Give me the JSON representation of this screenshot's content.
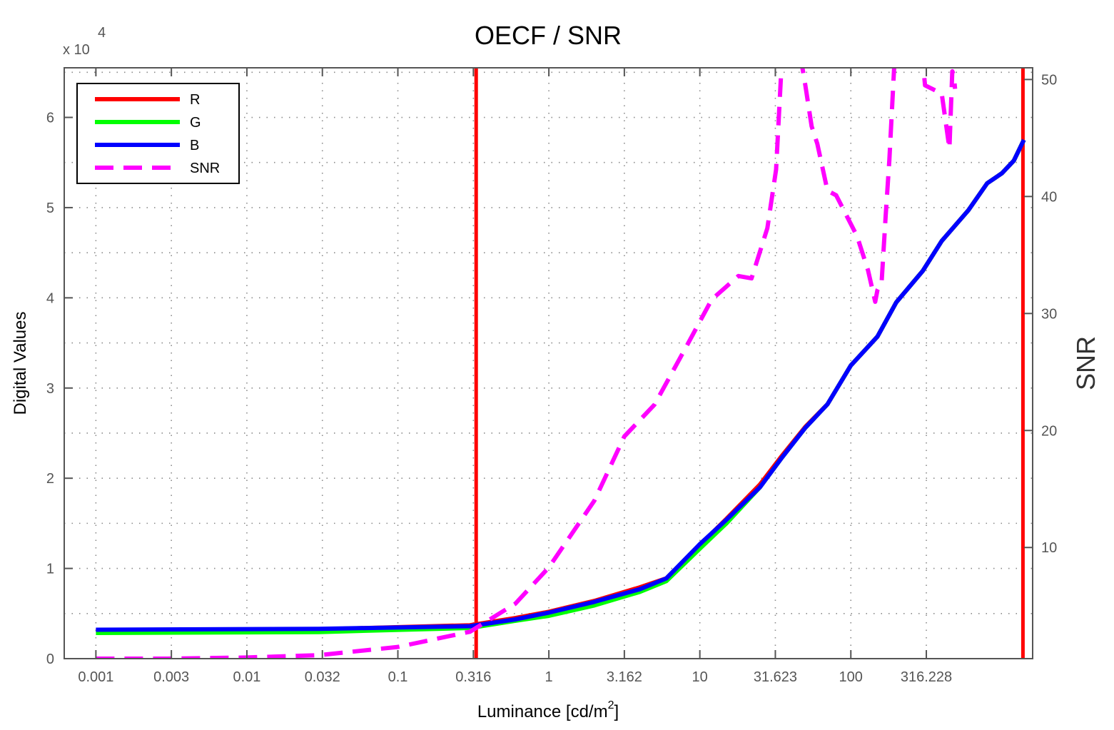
{
  "chart_data": {
    "type": "line",
    "title": "OECF / SNR",
    "xlabel": "Luminance [cd/m",
    "xlabel_sup": "2",
    "xlabel_end": "]",
    "ylabel": "Digital Values",
    "y2label": "SNR",
    "y_exponent_base": "x 10",
    "y_exponent_power": "4",
    "xscale": "log10",
    "xlim": [
      0.000617,
      1600
    ],
    "ylim": [
      0,
      65500
    ],
    "y2lim": [
      0.5,
      51
    ],
    "xticks": [
      {
        "value": 0.001,
        "label": "0.001"
      },
      {
        "value": 0.003162,
        "label": "0.003"
      },
      {
        "value": 0.01,
        "label": "0.01"
      },
      {
        "value": 0.031623,
        "label": "0.032"
      },
      {
        "value": 0.1,
        "label": "0.1"
      },
      {
        "value": 0.316228,
        "label": "0.316"
      },
      {
        "value": 1,
        "label": "1"
      },
      {
        "value": 3.162278,
        "label": "3.162"
      },
      {
        "value": 10,
        "label": "10"
      },
      {
        "value": 31.622777,
        "label": "31.623"
      },
      {
        "value": 100,
        "label": "100"
      },
      {
        "value": 316.227766,
        "label": "316.228"
      }
    ],
    "yticks": [
      {
        "value": 0,
        "label": "0"
      },
      {
        "value": 10000,
        "label": "1"
      },
      {
        "value": 20000,
        "label": "2"
      },
      {
        "value": 30000,
        "label": "3"
      },
      {
        "value": 40000,
        "label": "4"
      },
      {
        "value": 50000,
        "label": "5"
      },
      {
        "value": 60000,
        "label": "6"
      }
    ],
    "y2ticks": [
      {
        "value": 10,
        "label": "10"
      },
      {
        "value": 20,
        "label": "20"
      },
      {
        "value": 30,
        "label": "30"
      },
      {
        "value": 40,
        "label": "40"
      },
      {
        "value": 50,
        "label": "50"
      }
    ],
    "grid": true,
    "legend_position": "top-left",
    "vlines": [
      {
        "x": 0.33,
        "color": "#ff0000"
      },
      {
        "x": 1380,
        "color": "#ff0000"
      }
    ],
    "series": [
      {
        "name": "R",
        "axis": "left",
        "color": "#ff0000",
        "dash": false,
        "x": [
          0.001,
          0.03,
          0.3,
          0.6,
          1,
          2,
          4,
          6,
          10,
          15,
          25,
          35,
          50,
          70,
          100,
          150,
          200,
          300,
          400,
          600,
          800,
          1000,
          1200,
          1400
        ],
        "y": [
          3150,
          3250,
          3700,
          4500,
          5200,
          6400,
          7900,
          8900,
          12600,
          15500,
          19300,
          22500,
          25700,
          28200,
          32500,
          35700,
          39500,
          43000,
          46300,
          49700,
          52700,
          53800,
          55200,
          57500
        ]
      },
      {
        "name": "G",
        "axis": "left",
        "color": "#00ff00",
        "dash": false,
        "x": [
          0.001,
          0.03,
          0.3,
          0.6,
          1,
          2,
          4,
          6,
          10,
          15,
          25,
          35,
          50,
          70,
          100,
          150,
          200,
          300,
          400,
          600,
          800,
          1000,
          1200,
          1400
        ],
        "y": [
          2850,
          2950,
          3400,
          4200,
          4750,
          5900,
          7400,
          8600,
          12200,
          15000,
          19000,
          22300,
          25600,
          28200,
          32500,
          35700,
          39500,
          43000,
          46300,
          49700,
          52700,
          53800,
          55200,
          57500
        ]
      },
      {
        "name": "B",
        "axis": "left",
        "color": "#0000ff",
        "dash": false,
        "x": [
          0.001,
          0.03,
          0.3,
          0.6,
          1,
          2,
          4,
          6,
          10,
          15,
          25,
          35,
          50,
          70,
          100,
          150,
          200,
          300,
          400,
          600,
          800,
          1000,
          1200,
          1400
        ],
        "y": [
          3200,
          3300,
          3600,
          4350,
          5100,
          6300,
          7700,
          8900,
          12700,
          15400,
          19000,
          22300,
          25600,
          28200,
          32500,
          35700,
          39500,
          43000,
          46300,
          49700,
          52700,
          53800,
          55200,
          57500
        ]
      },
      {
        "name": "SNR",
        "axis": "right",
        "color": "#ff00ff",
        "dash": true,
        "x": [
          0.001,
          0.003,
          0.01,
          0.03,
          0.1,
          0.3,
          0.6,
          1,
          2,
          3.162,
          5,
          8,
          12,
          18,
          22,
          28,
          32,
          36,
          45,
          50,
          55,
          60,
          70,
          80,
          90,
          110,
          130,
          145,
          150,
          160,
          170,
          180,
          200,
          300,
          310,
          400,
          450,
          470,
          480,
          490
        ],
        "y": [
          0.5,
          0.5,
          0.6,
          0.8,
          1.5,
          2.8,
          5.2,
          8.3,
          14,
          19.5,
          22.2,
          27,
          31.2,
          33.2,
          33,
          37.3,
          42.3,
          55,
          53,
          49.5,
          46,
          44.5,
          40.5,
          40.1,
          38.8,
          36.6,
          33.7,
          31,
          32,
          32.7,
          38.3,
          43.1,
          54.5,
          51.5,
          49.5,
          48.8,
          44.1,
          50.7,
          50.4,
          49.2
        ]
      }
    ]
  }
}
